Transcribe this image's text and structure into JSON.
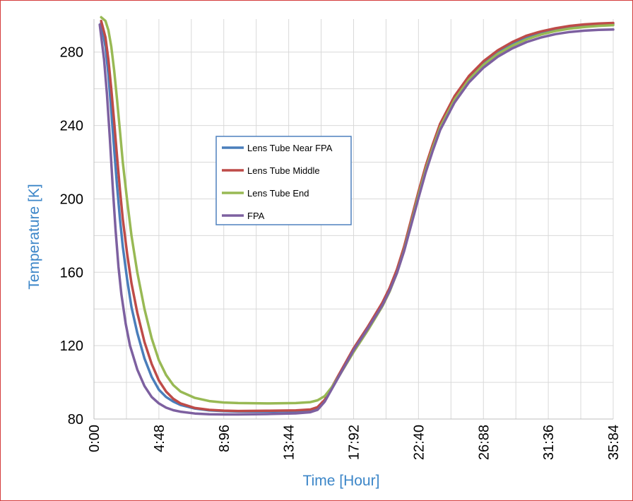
{
  "chart_data": {
    "type": "line",
    "title": "",
    "xlabel": "Time [Hour]",
    "ylabel": "Temperature [K]",
    "ylim": [
      80,
      298
    ],
    "y_ticks": [
      80,
      120,
      160,
      200,
      240,
      280
    ],
    "x_ticks": [
      "0:00",
      "4:48",
      "8:96",
      "13:44",
      "17:92",
      "22:40",
      "26:88",
      "31:36",
      "35:84"
    ],
    "grid": true,
    "legend_position": "upper-center-left",
    "colors": {
      "axis_title": "#3c86c8",
      "grid": "#d9d9d9",
      "frame": "#d43c3c",
      "legend_border": "#4f81bd"
    },
    "series": [
      {
        "name": "Lens Tube Near FPA",
        "color": "#4a7ebb",
        "points": [
          [
            0.5,
            296
          ],
          [
            0.8,
            283
          ],
          [
            1.0,
            268
          ],
          [
            1.2,
            248
          ],
          [
            1.4,
            227
          ],
          [
            1.6,
            207
          ],
          [
            1.8,
            189
          ],
          [
            2.0,
            174
          ],
          [
            2.3,
            156
          ],
          [
            2.6,
            141
          ],
          [
            3.0,
            127
          ],
          [
            3.5,
            113
          ],
          [
            4.0,
            103
          ],
          [
            4.5,
            96
          ],
          [
            5.0,
            92
          ],
          [
            5.5,
            89.5
          ],
          [
            6.0,
            87.7
          ],
          [
            7.0,
            85.7
          ],
          [
            8.0,
            84.7
          ],
          [
            9.0,
            84.3
          ],
          [
            10,
            84.1
          ],
          [
            12,
            84.1
          ],
          [
            14,
            84.3
          ],
          [
            15,
            84.8
          ],
          [
            15.5,
            86
          ],
          [
            16,
            90
          ],
          [
            16.5,
            97
          ],
          [
            17,
            104
          ],
          [
            17.5,
            111
          ],
          [
            18,
            118
          ],
          [
            19,
            130
          ],
          [
            20,
            143
          ],
          [
            20.5,
            151
          ],
          [
            21,
            161
          ],
          [
            21.5,
            173
          ],
          [
            22,
            188
          ],
          [
            22.5,
            203
          ],
          [
            23,
            217
          ],
          [
            23.5,
            229
          ],
          [
            24,
            240
          ],
          [
            25,
            255
          ],
          [
            26,
            266
          ],
          [
            27,
            274
          ],
          [
            28,
            280
          ],
          [
            29,
            284.5
          ],
          [
            30,
            288
          ],
          [
            31,
            290.5
          ],
          [
            32,
            292.3
          ],
          [
            33,
            293.6
          ],
          [
            34,
            294.4
          ],
          [
            35,
            295
          ],
          [
            36,
            295.3
          ]
        ]
      },
      {
        "name": "Lens Tube Middle",
        "color": "#be4b48",
        "points": [
          [
            0.5,
            297
          ],
          [
            0.8,
            288
          ],
          [
            1.0,
            276
          ],
          [
            1.2,
            260
          ],
          [
            1.4,
            242
          ],
          [
            1.6,
            223
          ],
          [
            1.8,
            205
          ],
          [
            2.0,
            189
          ],
          [
            2.3,
            170
          ],
          [
            2.6,
            154
          ],
          [
            3.0,
            138
          ],
          [
            3.5,
            122
          ],
          [
            4.0,
            110
          ],
          [
            4.5,
            101
          ],
          [
            5.0,
            95
          ],
          [
            5.5,
            91
          ],
          [
            6.0,
            88.5
          ],
          [
            7.0,
            86
          ],
          [
            8.0,
            85
          ],
          [
            9.0,
            84.6
          ],
          [
            10,
            84.4
          ],
          [
            12,
            84.5
          ],
          [
            14,
            84.7
          ],
          [
            15,
            85.2
          ],
          [
            15.5,
            86.5
          ],
          [
            16,
            90.5
          ],
          [
            16.5,
            97.5
          ],
          [
            17,
            104.5
          ],
          [
            17.5,
            111.5
          ],
          [
            18,
            118.5
          ],
          [
            19,
            130.5
          ],
          [
            20,
            143.5
          ],
          [
            20.5,
            151.5
          ],
          [
            21,
            161.5
          ],
          [
            21.5,
            174
          ],
          [
            22,
            189
          ],
          [
            22.5,
            204
          ],
          [
            23,
            218
          ],
          [
            23.5,
            230
          ],
          [
            24,
            241
          ],
          [
            25,
            256
          ],
          [
            26,
            267
          ],
          [
            27,
            275
          ],
          [
            28,
            281
          ],
          [
            29,
            285.5
          ],
          [
            30,
            289
          ],
          [
            31,
            291.3
          ],
          [
            32,
            293
          ],
          [
            33,
            294.3
          ],
          [
            34,
            295.1
          ],
          [
            35,
            295.6
          ],
          [
            36,
            295.9
          ]
        ]
      },
      {
        "name": "Lens Tube End",
        "color": "#98b954",
        "points": [
          [
            0.5,
            299
          ],
          [
            0.8,
            297
          ],
          [
            1.0,
            292
          ],
          [
            1.2,
            283
          ],
          [
            1.4,
            270
          ],
          [
            1.6,
            254
          ],
          [
            1.8,
            237
          ],
          [
            2.0,
            220
          ],
          [
            2.3,
            199
          ],
          [
            2.6,
            180
          ],
          [
            3.0,
            160
          ],
          [
            3.5,
            140
          ],
          [
            4.0,
            124
          ],
          [
            4.5,
            112
          ],
          [
            5.0,
            104
          ],
          [
            5.5,
            98.5
          ],
          [
            6.0,
            95
          ],
          [
            7.0,
            91.5
          ],
          [
            8.0,
            89.8
          ],
          [
            9.0,
            89
          ],
          [
            10,
            88.7
          ],
          [
            12,
            88.5
          ],
          [
            14,
            88.7
          ],
          [
            15,
            89.2
          ],
          [
            15.5,
            90.2
          ],
          [
            16,
            92.5
          ],
          [
            16.5,
            97.5
          ],
          [
            17,
            103.5
          ],
          [
            17.5,
            110
          ],
          [
            18,
            116.5
          ],
          [
            19,
            128.5
          ],
          [
            20,
            141.5
          ],
          [
            20.5,
            149.5
          ],
          [
            21,
            159.5
          ],
          [
            21.5,
            172
          ],
          [
            22,
            187
          ],
          [
            22.5,
            202
          ],
          [
            23,
            216
          ],
          [
            23.5,
            228
          ],
          [
            24,
            239
          ],
          [
            25,
            254
          ],
          [
            26,
            265
          ],
          [
            27,
            273
          ],
          [
            28,
            279
          ],
          [
            29,
            283.5
          ],
          [
            30,
            287
          ],
          [
            31,
            289.6
          ],
          [
            32,
            291.5
          ],
          [
            33,
            292.8
          ],
          [
            34,
            293.7
          ],
          [
            35,
            294.3
          ],
          [
            36,
            294.7
          ]
        ]
      },
      {
        "name": "FPA",
        "color": "#7d60a0",
        "points": [
          [
            0.4,
            295
          ],
          [
            0.7,
            276
          ],
          [
            0.9,
            257
          ],
          [
            1.1,
            233
          ],
          [
            1.3,
            207
          ],
          [
            1.5,
            183
          ],
          [
            1.7,
            163
          ],
          [
            1.9,
            148
          ],
          [
            2.2,
            132
          ],
          [
            2.5,
            120
          ],
          [
            3.0,
            107
          ],
          [
            3.5,
            98
          ],
          [
            4.0,
            92
          ],
          [
            4.5,
            88.5
          ],
          [
            5.0,
            86.2
          ],
          [
            5.5,
            84.8
          ],
          [
            6.0,
            84
          ],
          [
            7.0,
            83
          ],
          [
            8.0,
            82.6
          ],
          [
            9.0,
            82.5
          ],
          [
            10,
            82.5
          ],
          [
            12,
            82.7
          ],
          [
            14,
            83.1
          ],
          [
            15,
            83.7
          ],
          [
            15.5,
            85
          ],
          [
            16,
            89.5
          ],
          [
            16.5,
            96.5
          ],
          [
            17,
            103.5
          ],
          [
            17.5,
            110.5
          ],
          [
            18,
            117.5
          ],
          [
            19,
            129.5
          ],
          [
            20,
            142
          ],
          [
            20.5,
            150
          ],
          [
            21,
            159.5
          ],
          [
            21.5,
            171.5
          ],
          [
            22,
            186
          ],
          [
            22.5,
            200.5
          ],
          [
            23,
            214.5
          ],
          [
            23.5,
            226.5
          ],
          [
            24,
            237.5
          ],
          [
            25,
            252.5
          ],
          [
            26,
            263.5
          ],
          [
            27,
            271.5
          ],
          [
            28,
            277.5
          ],
          [
            29,
            282
          ],
          [
            30,
            285.5
          ],
          [
            31,
            288
          ],
          [
            32,
            289.8
          ],
          [
            33,
            291
          ],
          [
            34,
            291.7
          ],
          [
            35,
            292.1
          ],
          [
            36,
            292.3
          ]
        ]
      }
    ]
  }
}
